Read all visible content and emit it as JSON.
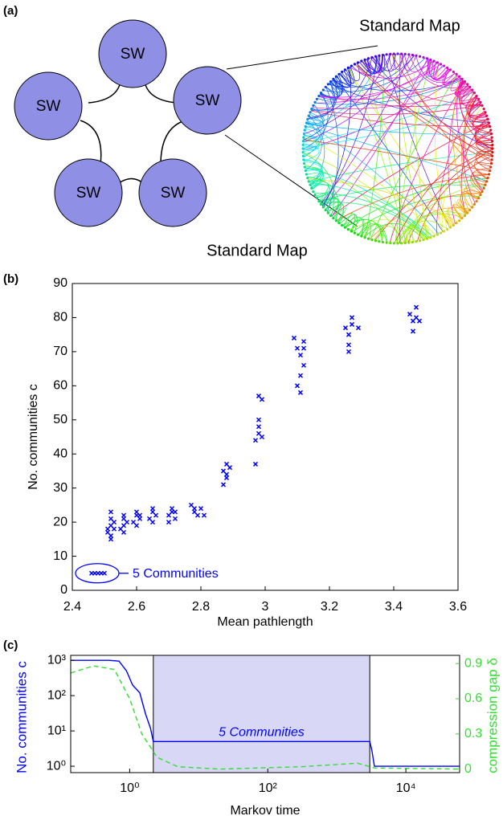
{
  "diagram": {
    "label": "(a)",
    "nodes": [
      "SW",
      "SW",
      "SW",
      "SW",
      "SW"
    ],
    "inset_title": "Standard Map"
  },
  "chart_data": [
    {
      "type": "scatter",
      "panel_label": "(b)",
      "title": "Standard Map",
      "xlabel": "Mean pathlength",
      "ylabel": "No. communities c",
      "color": "#0000ff",
      "annotation": "5 Communities",
      "xlim": [
        2.4,
        3.6
      ],
      "xticks": [
        2.4,
        2.6,
        2.8,
        3,
        3.2,
        3.4,
        3.6
      ],
      "ylim": [
        0,
        90
      ],
      "yticks": [
        0,
        10,
        20,
        30,
        40,
        50,
        60,
        70,
        80,
        90
      ],
      "x": [
        2.46,
        2.47,
        2.48,
        2.49,
        2.5,
        2.51,
        2.51,
        2.52,
        2.52,
        2.52,
        2.52,
        2.53,
        2.53,
        2.52,
        2.55,
        2.56,
        2.56,
        2.56,
        2.57,
        2.56,
        2.59,
        2.6,
        2.6,
        2.61,
        2.6,
        2.61,
        2.64,
        2.65,
        2.65,
        2.66,
        2.65,
        2.7,
        2.71,
        2.71,
        2.72,
        2.7,
        2.72,
        2.77,
        2.78,
        2.78,
        2.79,
        2.8,
        2.81,
        2.87,
        2.88,
        2.88,
        2.89,
        2.87,
        2.88,
        2.97,
        2.97,
        2.98,
        2.98,
        2.98,
        2.99,
        2.99,
        2.98,
        3.09,
        3.1,
        3.1,
        3.11,
        3.11,
        3.12,
        3.12,
        3.11,
        3.12,
        3.25,
        3.26,
        3.26,
        3.27,
        3.26,
        3.27,
        3.29,
        3.45,
        3.46,
        3.46,
        3.47,
        3.47,
        3.48
      ],
      "values": [
        5,
        5,
        5,
        5,
        5,
        18,
        17,
        19,
        16,
        15,
        23,
        20,
        18,
        21,
        18,
        19,
        21,
        22,
        20,
        17,
        20,
        22,
        23,
        21,
        19,
        22,
        21,
        23,
        24,
        22,
        20,
        22,
        24,
        23,
        21,
        20,
        23,
        25,
        24,
        23,
        22,
        24,
        22,
        35,
        34,
        37,
        36,
        31,
        33,
        37,
        44,
        46,
        50,
        57,
        56,
        45,
        48,
        74,
        71,
        60,
        58,
        69,
        66,
        73,
        63,
        71,
        77,
        75,
        72,
        80,
        70,
        78,
        77,
        81,
        79,
        76,
        83,
        80,
        79
      ]
    },
    {
      "type": "line",
      "panel_label": "(c)",
      "xlabel": "Markov time",
      "ylabel": "No. communities c",
      "y2label": "compression gap δ",
      "xscale": "log",
      "yscale": "log",
      "annotation": "5 Communities",
      "shaded_region": [
        2.2,
        3000
      ],
      "shade_color": "#d8d8f6",
      "xlim": [
        0.14,
        60000
      ],
      "xticks": [
        {
          "value": 1,
          "label": "10⁰"
        },
        {
          "value": 100,
          "label": "10²"
        },
        {
          "value": 10000,
          "label": "10⁴"
        }
      ],
      "ylim": [
        0.66,
        1380
      ],
      "yticks": [
        {
          "value": 1,
          "label": "10⁰"
        },
        {
          "value": 10,
          "label": "10¹"
        },
        {
          "value": 100,
          "label": "10²"
        },
        {
          "value": 1000,
          "label": "10³"
        }
      ],
      "y2lim": [
        -0.03,
        0.97
      ],
      "y2ticks": [
        0,
        0.3,
        0.6,
        0.9
      ],
      "series": [
        {
          "color": "#0000ff",
          "x": [
            0.14,
            0.5,
            0.7,
            0.9,
            1.1,
            1.4,
            1.7,
            2.0,
            2.2,
            3000,
            3200,
            3500,
            60000
          ],
          "values": [
            1000,
            1000,
            950,
            500,
            200,
            120,
            30,
            12,
            5,
            5,
            3,
            1,
            1
          ]
        },
        {
          "color": "#33dd33",
          "axis": "y2",
          "dashed": true,
          "x": [
            0.14,
            0.3,
            0.6,
            1,
            1.5,
            2.5,
            5,
            20,
            300,
            2000,
            3500,
            60000
          ],
          "values": [
            0.82,
            0.88,
            0.85,
            0.6,
            0.3,
            0.1,
            0.02,
            0,
            0.02,
            0.05,
            0.01,
            0
          ]
        }
      ]
    }
  ]
}
